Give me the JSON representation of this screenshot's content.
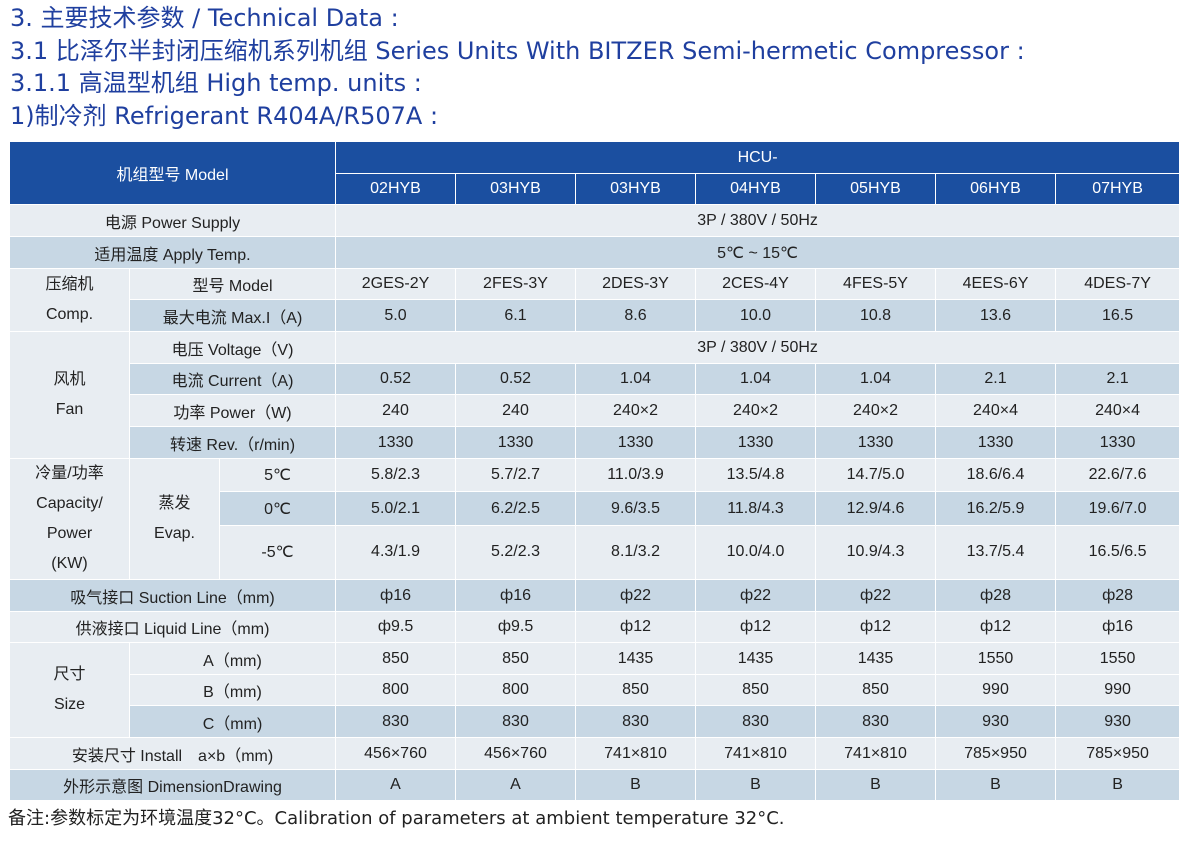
{
  "headings": [
    "3. 主要技术参数 / Technical Data :",
    "3.1 比泽尔半封闭压缩机系列机组 Series Units With BITZER Semi-hermetic Compressor :",
    "3.1.1 高温型机组 High temp. units :",
    "1)制冷剂 Refrigerant  R404A/R507A :"
  ],
  "table": {
    "model_label": "机组型号 Model",
    "series": "HCU-",
    "models": [
      "02HYB",
      "03HYB",
      "03HYB",
      "04HYB",
      "05HYB",
      "06HYB",
      "07HYB"
    ],
    "power_supply": {
      "label": "电源 Power Supply",
      "value": "3P / 380V / 50Hz"
    },
    "apply_temp": {
      "label": "适用温度 Apply Temp.",
      "value": "5℃ ~ 15℃"
    },
    "compressor": {
      "group": [
        "压缩机",
        "Comp."
      ],
      "model": {
        "label": "型号 Model",
        "values": [
          "2GES-2Y",
          "2FES-3Y",
          "2DES-3Y",
          "2CES-4Y",
          "4FES-5Y",
          "4EES-6Y",
          "4DES-7Y"
        ]
      },
      "max_current": {
        "label": "最大电流 Max.I（A)",
        "values": [
          "5.0",
          "6.1",
          "8.6",
          "10.0",
          "10.8",
          "13.6",
          "16.5"
        ]
      }
    },
    "fan": {
      "group": [
        "风机",
        "Fan"
      ],
      "voltage": {
        "label": "电压 Voltage（V)",
        "value": "3P / 380V / 50Hz"
      },
      "current": {
        "label": "电流 Current（A)",
        "values": [
          "0.52",
          "0.52",
          "1.04",
          "1.04",
          "1.04",
          "2.1",
          "2.1"
        ]
      },
      "power": {
        "label": "功率 Power（W)",
        "values": [
          "240",
          "240",
          "240×2",
          "240×2",
          "240×2",
          "240×4",
          "240×4"
        ]
      },
      "rev": {
        "label": "转速 Rev.（r/min)",
        "values": [
          "1330",
          "1330",
          "1330",
          "1330",
          "1330",
          "1330",
          "1330"
        ]
      }
    },
    "capacity": {
      "group": [
        "冷量/功率",
        "Capacity/",
        "Power",
        "(KW)"
      ],
      "evap": [
        "蒸发",
        "Evap."
      ],
      "rows": [
        {
          "label": "5℃",
          "values": [
            "5.8/2.3",
            "5.7/2.7",
            "11.0/3.9",
            "13.5/4.8",
            "14.7/5.0",
            "18.6/6.4",
            "22.6/7.6"
          ]
        },
        {
          "label": "0℃",
          "values": [
            "5.0/2.1",
            "6.2/2.5",
            "9.6/3.5",
            "11.8/4.3",
            "12.9/4.6",
            "16.2/5.9",
            "19.6/7.0"
          ]
        },
        {
          "label": "-5℃",
          "values": [
            "4.3/1.9",
            "5.2/2.3",
            "8.1/3.2",
            "10.0/4.0",
            "10.9/4.3",
            "13.7/5.4",
            "16.5/6.5"
          ]
        }
      ]
    },
    "suction": {
      "label": "吸气接口 Suction Line（mm)",
      "values": [
        "ф16",
        "ф16",
        "ф22",
        "ф22",
        "ф22",
        "ф28",
        "ф28"
      ]
    },
    "liquid": {
      "label": "供液接口 Liquid Line（mm)",
      "values": [
        "ф9.5",
        "ф9.5",
        "ф12",
        "ф12",
        "ф12",
        "ф12",
        "ф16"
      ]
    },
    "size": {
      "group": [
        "尺寸",
        "Size"
      ],
      "rows": [
        {
          "label": "A（mm)",
          "values": [
            "850",
            "850",
            "1435",
            "1435",
            "1435",
            "1550",
            "1550"
          ]
        },
        {
          "label": "B（mm)",
          "values": [
            "800",
            "800",
            "850",
            "850",
            "850",
            "990",
            "990"
          ]
        },
        {
          "label": "C（mm)",
          "values": [
            "830",
            "830",
            "830",
            "830",
            "830",
            "930",
            "930"
          ]
        }
      ]
    },
    "install": {
      "label": "安装尺寸 Install　a×b（mm)",
      "values": [
        "456×760",
        "456×760",
        "741×810",
        "741×810",
        "741×810",
        "785×950",
        "785×950"
      ]
    },
    "drawing": {
      "label": "外形示意图 DimensionDrawing",
      "values": [
        "A",
        "A",
        "B",
        "B",
        "B",
        "B",
        "B"
      ]
    }
  },
  "footnote": "备注:参数标定为环境温度32°C。Calibration of parameters at ambient temperature 32°C.",
  "colors": {
    "header_blue": "#1b4fa0",
    "row_light": "#e8edf2",
    "row_dark": "#c7d7e4",
    "heading_blue": "#1f3f9f"
  }
}
